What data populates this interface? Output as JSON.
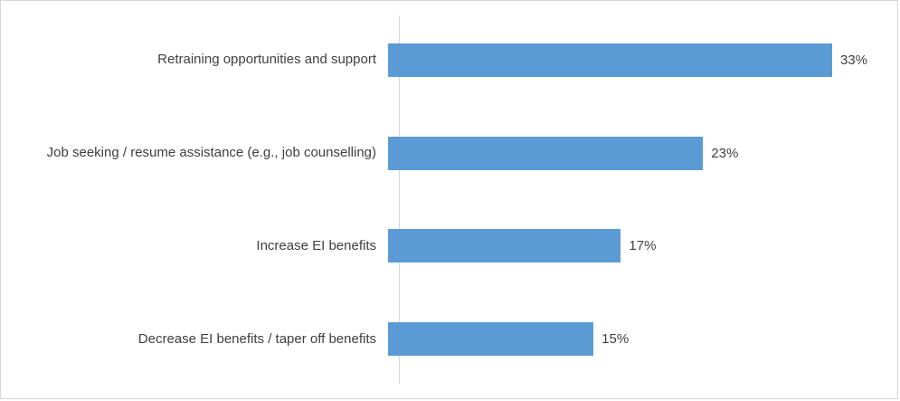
{
  "chart_data": {
    "type": "bar",
    "orientation": "horizontal",
    "title": "",
    "xlabel": "",
    "ylabel": "",
    "categories": [
      "Retraining opportunities and support",
      "Job seeking / resume assistance (e.g., job counselling)",
      "Increase EI benefits",
      "Decrease EI benefits / taper off benefits"
    ],
    "values": [
      33,
      23,
      17,
      15
    ],
    "value_labels": [
      "33%",
      "23%",
      "17%",
      "15%"
    ],
    "axis_max": 35,
    "grid": false,
    "legend": false,
    "data_labels_position": "outside-end"
  },
  "colors": {
    "bar": "#5b9bd5",
    "axis": "#d9d9d9",
    "text": "#404040",
    "frame_border": "#d6d6d6",
    "background": "#ffffff"
  }
}
